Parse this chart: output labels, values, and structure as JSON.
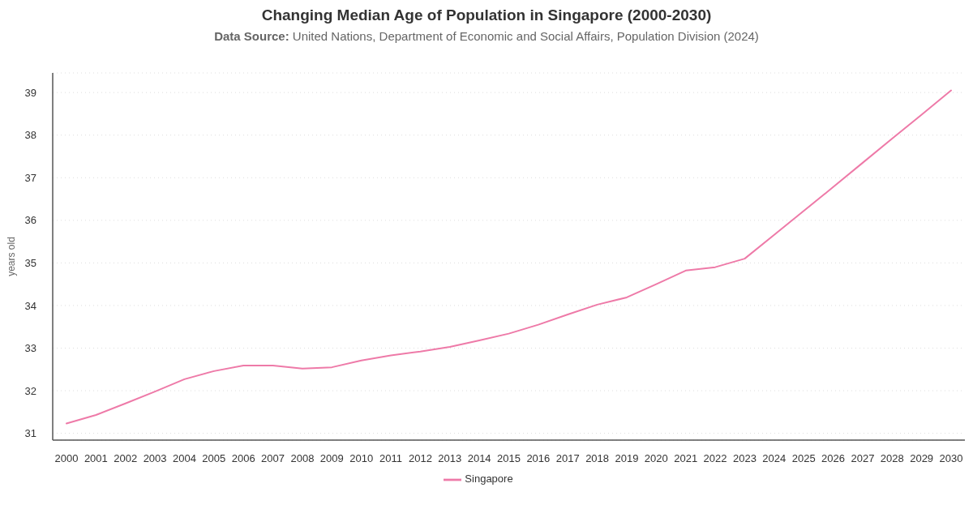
{
  "chart_data": {
    "type": "line",
    "title": "Changing Median Age of Population in Singapore (2000-2030)",
    "subtitle": "Data Source: United Nations, Department of Economic and Social Affairs, Population Division (2024)",
    "ylabel": "years old",
    "categories": [
      "2000",
      "2001",
      "2002",
      "2003",
      "2004",
      "2005",
      "2006",
      "2007",
      "2008",
      "2009",
      "2010",
      "2011",
      "2012",
      "2013",
      "2014",
      "2015",
      "2016",
      "2017",
      "2018",
      "2019",
      "2020",
      "2021",
      "2022",
      "2023",
      "2024",
      "2025",
      "2026",
      "2027",
      "2028",
      "2029",
      "2030"
    ],
    "series": [
      {
        "name": "Singapore",
        "color": "#ee7aa8",
        "values": [
          31.23,
          31.43,
          31.7,
          31.98,
          32.27,
          32.46,
          32.59,
          32.59,
          32.52,
          32.55,
          32.71,
          32.83,
          32.92,
          33.03,
          33.18,
          33.34,
          33.55,
          33.79,
          34.02,
          34.19,
          34.5,
          34.82,
          34.9,
          35.1,
          35.66,
          36.22,
          36.78,
          37.35,
          37.92,
          38.48,
          39.05
        ]
      }
    ],
    "ylim": [
      30.84,
      39.46
    ],
    "yticks": [
      31,
      32,
      33,
      34,
      35,
      36,
      37,
      38,
      39
    ],
    "grid": "y",
    "legend": "bottom",
    "line_style": "solid"
  }
}
